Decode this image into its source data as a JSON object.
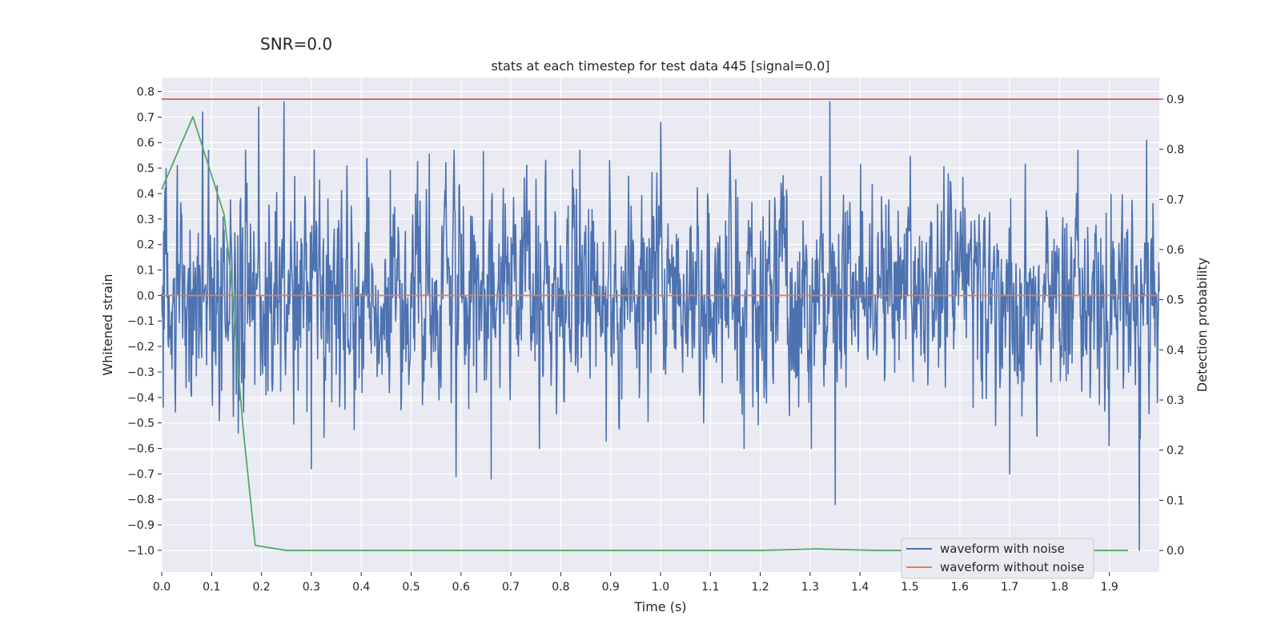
{
  "chart_data": {
    "type": "line",
    "suptitle": "SNR=0.0",
    "title": "stats at each timestep for test data 445 [signal=0.0]",
    "xlabel": "Time (s)",
    "ylabel": "Whitened strain",
    "y2label": "Detection probability",
    "xlim": [
      0.0,
      2.0
    ],
    "ylim": [
      -1.085,
      0.855
    ],
    "y2lim": [
      -0.043,
      0.943
    ],
    "xticks": [
      "0.0",
      "0.1",
      "0.2",
      "0.3",
      "0.4",
      "0.5",
      "0.6",
      "0.7",
      "0.8",
      "0.9",
      "1.0",
      "1.1",
      "1.2",
      "1.3",
      "1.4",
      "1.5",
      "1.6",
      "1.7",
      "1.8",
      "1.9"
    ],
    "yticks": [
      "0.8",
      "0.7",
      "0.6",
      "0.5",
      "0.4",
      "0.3",
      "0.2",
      "0.1",
      "0.0",
      "−0.1",
      "−0.2",
      "−0.3",
      "−0.4",
      "−0.5",
      "−0.6",
      "−0.7",
      "−0.8",
      "−0.9",
      "−1.0"
    ],
    "y2ticks": [
      "0.9",
      "0.8",
      "0.7",
      "0.6",
      "0.5",
      "0.4",
      "0.3",
      "0.2",
      "0.1",
      "0.0"
    ],
    "legend": {
      "placement": "lower-right",
      "entries": [
        "waveform with noise",
        "waveform without noise"
      ]
    },
    "colors": {
      "noise": "#4c72b0",
      "clean": "#dd8452",
      "probability": "#55a868",
      "threshold": "#c44e52",
      "background": "#eaeaf2",
      "grid": "#ffffff"
    },
    "series": [
      {
        "name": "waveform with noise",
        "axis": "left",
        "n_points": 2048,
        "x_range": [
          0.0,
          2.0
        ],
        "approx_std": 0.22,
        "approx_min": -1.0,
        "approx_max": 0.76,
        "notable_peaks": [
          [
            0.082,
            0.72
          ],
          [
            0.194,
            0.74
          ],
          [
            0.245,
            0.76
          ],
          [
            0.3,
            -0.68
          ],
          [
            0.59,
            -0.71
          ],
          [
            0.66,
            -0.72
          ],
          [
            1.0,
            0.68
          ],
          [
            1.34,
            0.76
          ],
          [
            1.35,
            -0.82
          ],
          [
            1.7,
            -0.7
          ],
          [
            1.96,
            -1.0
          ],
          [
            1.975,
            0.61
          ]
        ]
      },
      {
        "name": "waveform without noise",
        "axis": "left",
        "x": [
          0.0,
          2.0
        ],
        "values": [
          0.0,
          0.0
        ]
      },
      {
        "name": "detection probability",
        "axis": "right",
        "x": [
          0.0,
          0.0625,
          0.125,
          0.1375,
          0.1625,
          0.1875,
          0.25,
          0.5,
          0.75,
          1.0,
          1.2,
          1.3125,
          1.4375,
          1.6,
          1.8,
          1.9375
        ],
        "values": [
          0.72,
          0.865,
          0.67,
          0.56,
          0.25,
          0.01,
          0.0,
          0.0,
          0.0,
          0.0,
          0.0,
          0.003,
          0.0,
          0.0,
          0.0,
          0.0
        ]
      },
      {
        "name": "threshold",
        "axis": "right",
        "x": [
          0.0,
          2.0
        ],
        "values": [
          0.9,
          0.9
        ]
      }
    ]
  }
}
